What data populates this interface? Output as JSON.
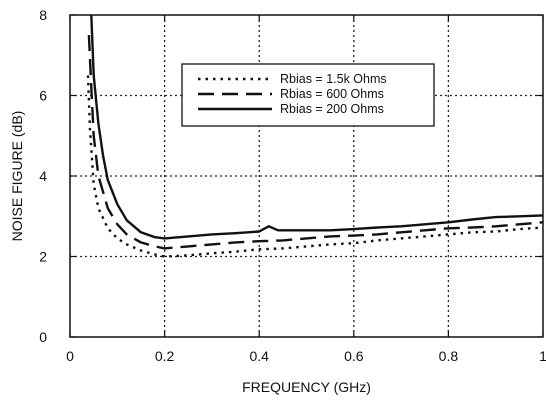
{
  "chart_data": {
    "type": "line",
    "xlabel": "FREQUENCY (GHz)",
    "ylabel": "NOISE FIGURE (dB)",
    "xlim": [
      0,
      1
    ],
    "ylim": [
      0,
      8
    ],
    "xticks": [
      0,
      0.2,
      0.4,
      0.6,
      0.8,
      1
    ],
    "xtick_labels": [
      "0",
      "0.2",
      "0.4",
      "0.6",
      "0.8",
      "1"
    ],
    "yticks": [
      0,
      2,
      4,
      6,
      8
    ],
    "ytick_labels": [
      "0",
      "2",
      "4",
      "6",
      "8"
    ],
    "grid": true,
    "legend_position": "top-center",
    "series": [
      {
        "name": "Rbias = 1.5k Ohms",
        "style": "dotted",
        "color": "#111111",
        "x": [
          0.038,
          0.042,
          0.05,
          0.06,
          0.08,
          0.1,
          0.12,
          0.15,
          0.18,
          0.2,
          0.25,
          0.3,
          0.35,
          0.4,
          0.45,
          0.5,
          0.55,
          0.6,
          0.65,
          0.7,
          0.75,
          0.8,
          0.85,
          0.9,
          0.95,
          1.0
        ],
        "y": [
          6.5,
          5.2,
          3.8,
          3.2,
          2.7,
          2.45,
          2.3,
          2.15,
          2.05,
          2.0,
          2.03,
          2.08,
          2.12,
          2.18,
          2.2,
          2.25,
          2.3,
          2.33,
          2.4,
          2.45,
          2.5,
          2.55,
          2.6,
          2.62,
          2.68,
          2.72
        ]
      },
      {
        "name": "Rbias = 600 Ohms",
        "style": "dashed",
        "color": "#111111",
        "x": [
          0.04,
          0.045,
          0.05,
          0.06,
          0.08,
          0.1,
          0.12,
          0.15,
          0.18,
          0.2,
          0.25,
          0.3,
          0.35,
          0.4,
          0.45,
          0.5,
          0.55,
          0.6,
          0.65,
          0.7,
          0.75,
          0.8,
          0.85,
          0.9,
          0.95,
          1.0
        ],
        "y": [
          7.5,
          6.2,
          5.0,
          4.0,
          3.2,
          2.8,
          2.55,
          2.35,
          2.25,
          2.2,
          2.25,
          2.3,
          2.35,
          2.38,
          2.4,
          2.45,
          2.5,
          2.52,
          2.55,
          2.6,
          2.65,
          2.7,
          2.72,
          2.75,
          2.8,
          2.85
        ]
      },
      {
        "name": "Rbias = 200 Ohms",
        "style": "solid",
        "color": "#111111",
        "x": [
          0.045,
          0.05,
          0.06,
          0.07,
          0.08,
          0.1,
          0.12,
          0.15,
          0.18,
          0.2,
          0.25,
          0.3,
          0.35,
          0.4,
          0.42,
          0.44,
          0.5,
          0.55,
          0.6,
          0.65,
          0.7,
          0.75,
          0.8,
          0.85,
          0.9,
          0.95,
          1.0
        ],
        "y": [
          8.0,
          6.5,
          5.3,
          4.5,
          3.9,
          3.3,
          2.9,
          2.6,
          2.48,
          2.45,
          2.5,
          2.55,
          2.58,
          2.62,
          2.75,
          2.65,
          2.65,
          2.65,
          2.68,
          2.72,
          2.75,
          2.8,
          2.85,
          2.92,
          2.98,
          3.0,
          3.02
        ]
      }
    ]
  }
}
